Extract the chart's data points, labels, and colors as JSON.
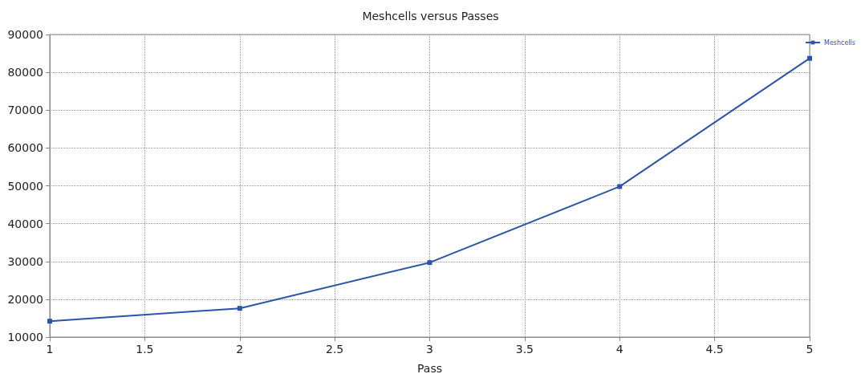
{
  "chart_data": {
    "type": "line",
    "title": "Meshcells versus Passes",
    "xlabel": "Pass",
    "x": [
      1,
      2,
      3,
      4,
      5
    ],
    "series": [
      {
        "name": "Meshcells",
        "color": "#2b55aa",
        "values": [
          14200,
          17600,
          29700,
          49800,
          83700
        ]
      }
    ],
    "xlim": [
      1,
      5
    ],
    "xticks": [
      1,
      1.5,
      2,
      2.5,
      3,
      3.5,
      4,
      4.5,
      5
    ],
    "ylim": [
      10000,
      90000
    ],
    "yticks": [
      10000,
      20000,
      30000,
      40000,
      50000,
      60000,
      70000,
      80000,
      90000
    ],
    "grid": true,
    "legend": "top right",
    "marker": "square",
    "line_style": "solid"
  }
}
